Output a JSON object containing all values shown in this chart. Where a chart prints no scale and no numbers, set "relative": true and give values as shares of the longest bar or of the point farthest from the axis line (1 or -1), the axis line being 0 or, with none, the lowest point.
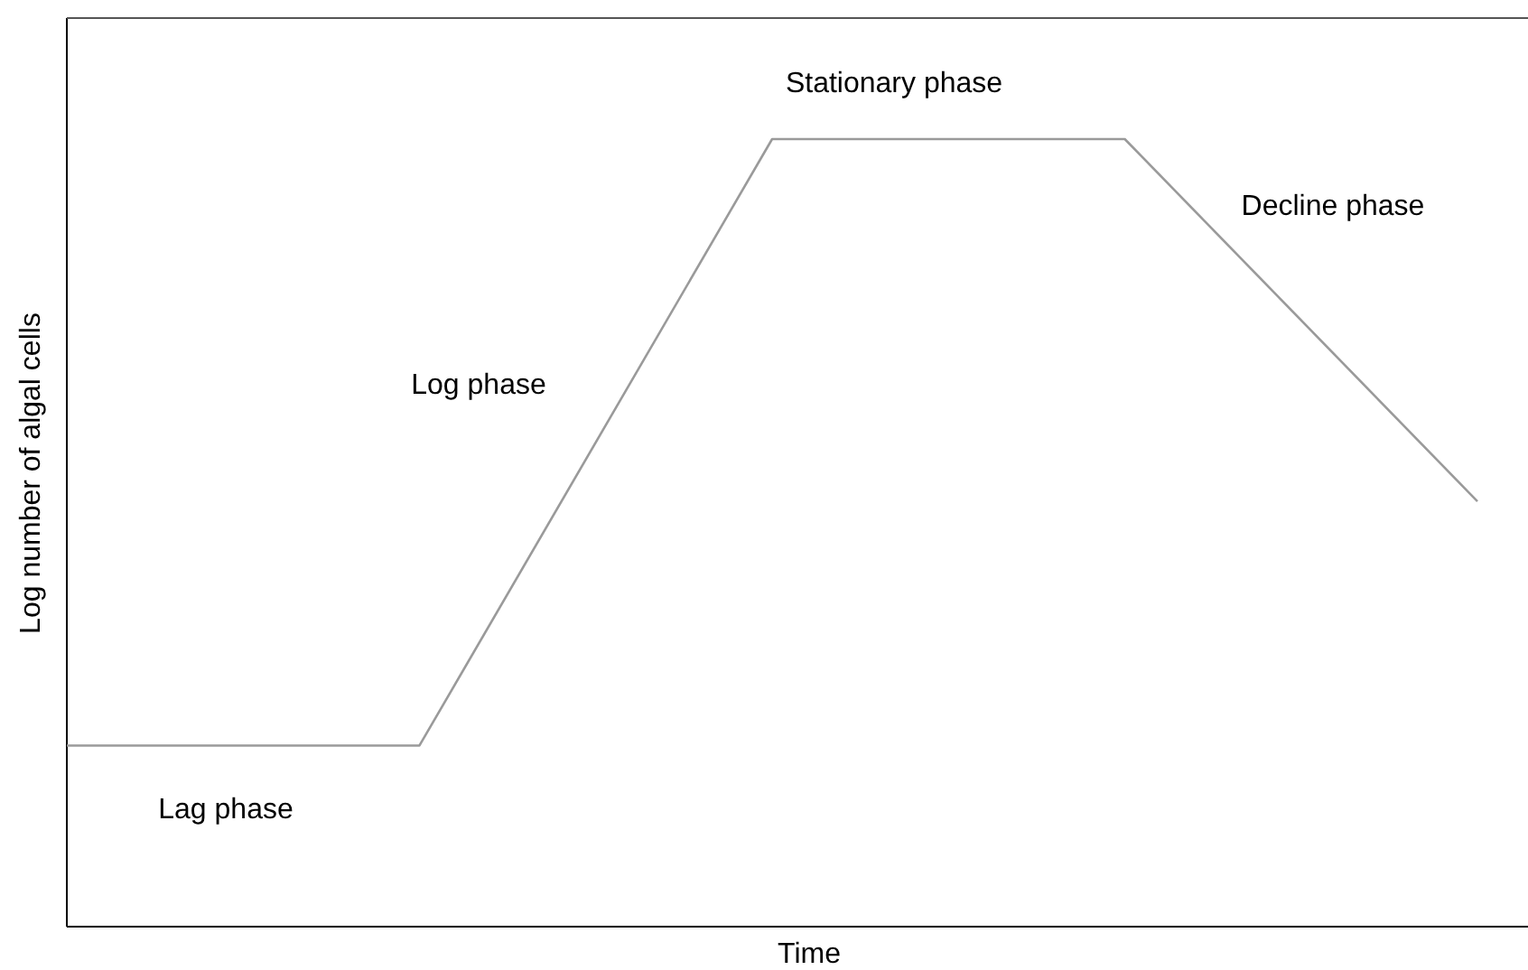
{
  "chart_data": {
    "type": "line",
    "relative": true,
    "xlabel": "Time",
    "ylabel": "Log number of algal cells",
    "categories": [
      null,
      null,
      null,
      null,
      null
    ],
    "series": [
      {
        "color": "#9a9a9a",
        "values": [
          0.23,
          0.23,
          1,
          1,
          0.54
        ]
      }
    ],
    "annotations": [
      "Stationary phase",
      "Decline phase",
      "Log phase",
      "Lag phase"
    ],
    "marker": "none",
    "line_style": "solid"
  }
}
